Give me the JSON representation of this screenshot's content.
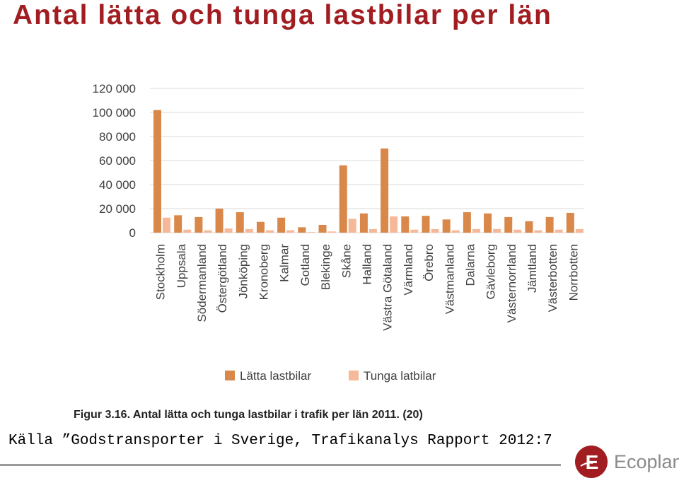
{
  "title": "Antal lätta och tunga lastbilar per län",
  "source": "Källa ”Godstransporter i Sverige, Trafikanalys Rapport 2012:7",
  "logo": {
    "text": "Ecoplan",
    "mark_letter": "E",
    "icon": "ecoplan-logo-icon"
  },
  "colors": {
    "title": "#a11d21",
    "light": "#d9884a",
    "heavy": "#f5b99a",
    "grid": "#d9d9d9"
  },
  "chart_data": {
    "type": "bar",
    "caption": "Figur 3.16. Antal lätta och tunga lastbilar i trafik per län 2011. (20)",
    "categories": [
      "Stockholm",
      "Uppsala",
      "Södermanland",
      "Östergötland",
      "Jönköping",
      "Kronoberg",
      "Kalmar",
      "Gotland",
      "Blekinge",
      "Skåne",
      "Halland",
      "Västra Götaland",
      "Värmland",
      "Örebro",
      "Västmanland",
      "Dalarna",
      "Gävleborg",
      "Västernorrland",
      "Jämtland",
      "Västerbotten",
      "Norrbotten"
    ],
    "series": [
      {
        "name": "Lätta lastbilar",
        "values": [
          102000,
          14500,
          13000,
          20000,
          17000,
          9000,
          12500,
          4500,
          6500,
          56000,
          16000,
          70000,
          13500,
          14000,
          11000,
          17000,
          16000,
          13000,
          9500,
          13000,
          16500
        ]
      },
      {
        "name": "Tunga latbilar",
        "values": [
          12500,
          2500,
          2000,
          3500,
          3000,
          2000,
          2000,
          500,
          1000,
          11500,
          3000,
          13500,
          2500,
          3000,
          2000,
          3000,
          3000,
          2500,
          2000,
          2500,
          3000
        ]
      }
    ],
    "ylim": [
      0,
      120000
    ],
    "yticks": [
      0,
      20000,
      40000,
      60000,
      80000,
      100000,
      120000
    ],
    "ytick_labels": [
      "0",
      "20 000",
      "40 000",
      "60 000",
      "80 000",
      "100 000",
      "120 000"
    ],
    "grid": true,
    "legend_position": "bottom"
  }
}
